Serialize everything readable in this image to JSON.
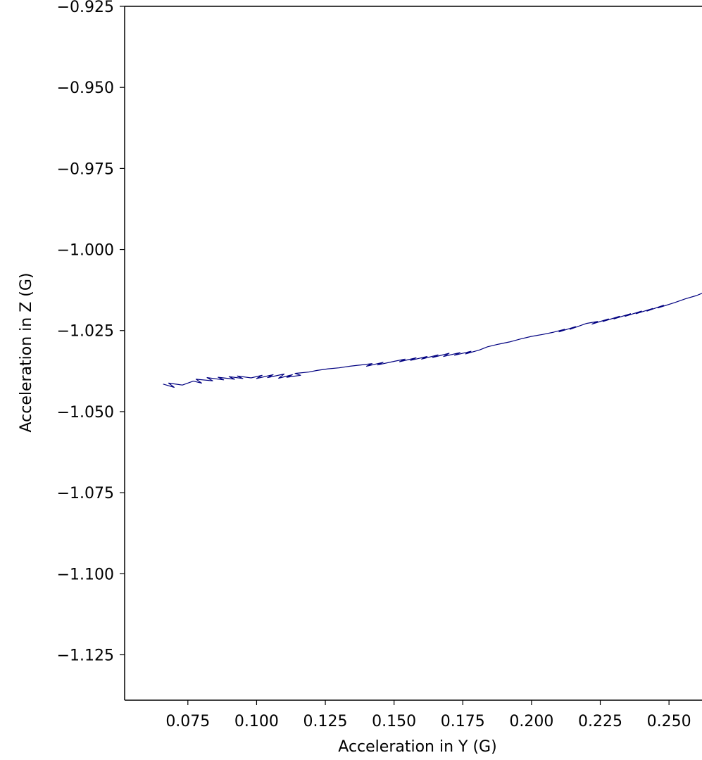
{
  "chart_data": {
    "type": "line",
    "title": "",
    "xlabel": "Acceleration in Y (G)",
    "ylabel": "Acceleration in Z (G)",
    "xlim": [
      0.052,
      0.262
    ],
    "ylim": [
      -1.139,
      -0.925
    ],
    "x_ticks": [
      "0.075",
      "0.100",
      "0.125",
      "0.150",
      "0.175",
      "0.200",
      "0.225",
      "0.250"
    ],
    "y_ticks": [
      "−0.925",
      "−0.950",
      "−0.975",
      "−1.000",
      "−1.025",
      "−1.050",
      "−1.075",
      "−1.100",
      "−1.125"
    ],
    "grid": false,
    "series": [
      {
        "color": "#000080",
        "x": [
          0.066,
          0.07,
          0.068,
          0.073,
          0.077,
          0.08,
          0.078,
          0.084,
          0.082,
          0.088,
          0.086,
          0.092,
          0.09,
          0.095,
          0.093,
          0.098,
          0.102,
          0.1,
          0.106,
          0.104,
          0.11,
          0.108,
          0.113,
          0.111,
          0.116,
          0.114,
          0.119,
          0.122,
          0.126,
          0.13,
          0.134,
          0.138,
          0.142,
          0.14,
          0.146,
          0.144,
          0.15,
          0.154,
          0.152,
          0.158,
          0.156,
          0.162,
          0.16,
          0.166,
          0.164,
          0.17,
          0.168,
          0.174,
          0.172,
          0.178,
          0.176,
          0.181,
          0.184,
          0.188,
          0.192,
          0.196,
          0.2,
          0.204,
          0.208,
          0.212,
          0.21,
          0.216,
          0.214,
          0.22,
          0.224,
          0.222,
          0.228,
          0.226,
          0.232,
          0.23,
          0.236,
          0.234,
          0.24,
          0.238,
          0.244,
          0.242,
          0.248,
          0.246,
          0.252,
          0.256,
          0.26,
          0.262
        ],
        "y": [
          -1.0415,
          -1.0425,
          -1.0412,
          -1.0418,
          -1.0406,
          -1.0412,
          -1.04,
          -1.0405,
          -1.0395,
          -1.0402,
          -1.0394,
          -1.04,
          -1.0392,
          -1.0398,
          -1.039,
          -1.0396,
          -1.0388,
          -1.0398,
          -1.0386,
          -1.0395,
          -1.0384,
          -1.0397,
          -1.0386,
          -1.0394,
          -1.0388,
          -1.0382,
          -1.0378,
          -1.0373,
          -1.0368,
          -1.0365,
          -1.036,
          -1.0356,
          -1.0352,
          -1.036,
          -1.0348,
          -1.0356,
          -1.0345,
          -1.0338,
          -1.0346,
          -1.0334,
          -1.0342,
          -1.033,
          -1.0338,
          -1.0325,
          -1.0333,
          -1.032,
          -1.033,
          -1.0318,
          -1.0326,
          -1.0314,
          -1.0322,
          -1.031,
          -1.03,
          -1.0292,
          -1.0285,
          -1.0276,
          -1.0268,
          -1.0262,
          -1.0255,
          -1.0246,
          -1.0254,
          -1.0238,
          -1.0246,
          -1.0228,
          -1.0222,
          -1.023,
          -1.0214,
          -1.0222,
          -1.0206,
          -1.0214,
          -1.0198,
          -1.0206,
          -1.019,
          -1.0198,
          -1.0182,
          -1.019,
          -1.0172,
          -1.018,
          -1.0164,
          -1.0152,
          -1.0142,
          -1.0135
        ]
      }
    ]
  }
}
